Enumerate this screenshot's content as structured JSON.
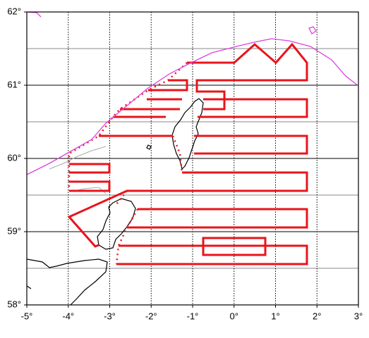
{
  "chart_data": {
    "type": "map",
    "xlim": [
      -5,
      3
    ],
    "ylim": [
      58,
      62
    ],
    "xticks": [
      {
        "value": -5,
        "label": "-5°"
      },
      {
        "value": -4,
        "label": "-4°"
      },
      {
        "value": -3,
        "label": "-3°"
      },
      {
        "value": -2,
        "label": "-2°"
      },
      {
        "value": -1,
        "label": "-1°"
      },
      {
        "value": 0,
        "label": "0°"
      },
      {
        "value": 1,
        "label": "1°"
      },
      {
        "value": 2,
        "label": "2°"
      },
      {
        "value": 3,
        "label": "3°"
      }
    ],
    "yticks": [
      {
        "value": 58,
        "label": "58°"
      },
      {
        "value": 59,
        "label": "59°"
      },
      {
        "value": 60,
        "label": "60°"
      },
      {
        "value": 61,
        "label": "61°"
      },
      {
        "value": 62,
        "label": "62°"
      }
    ],
    "grid": true
  }
}
